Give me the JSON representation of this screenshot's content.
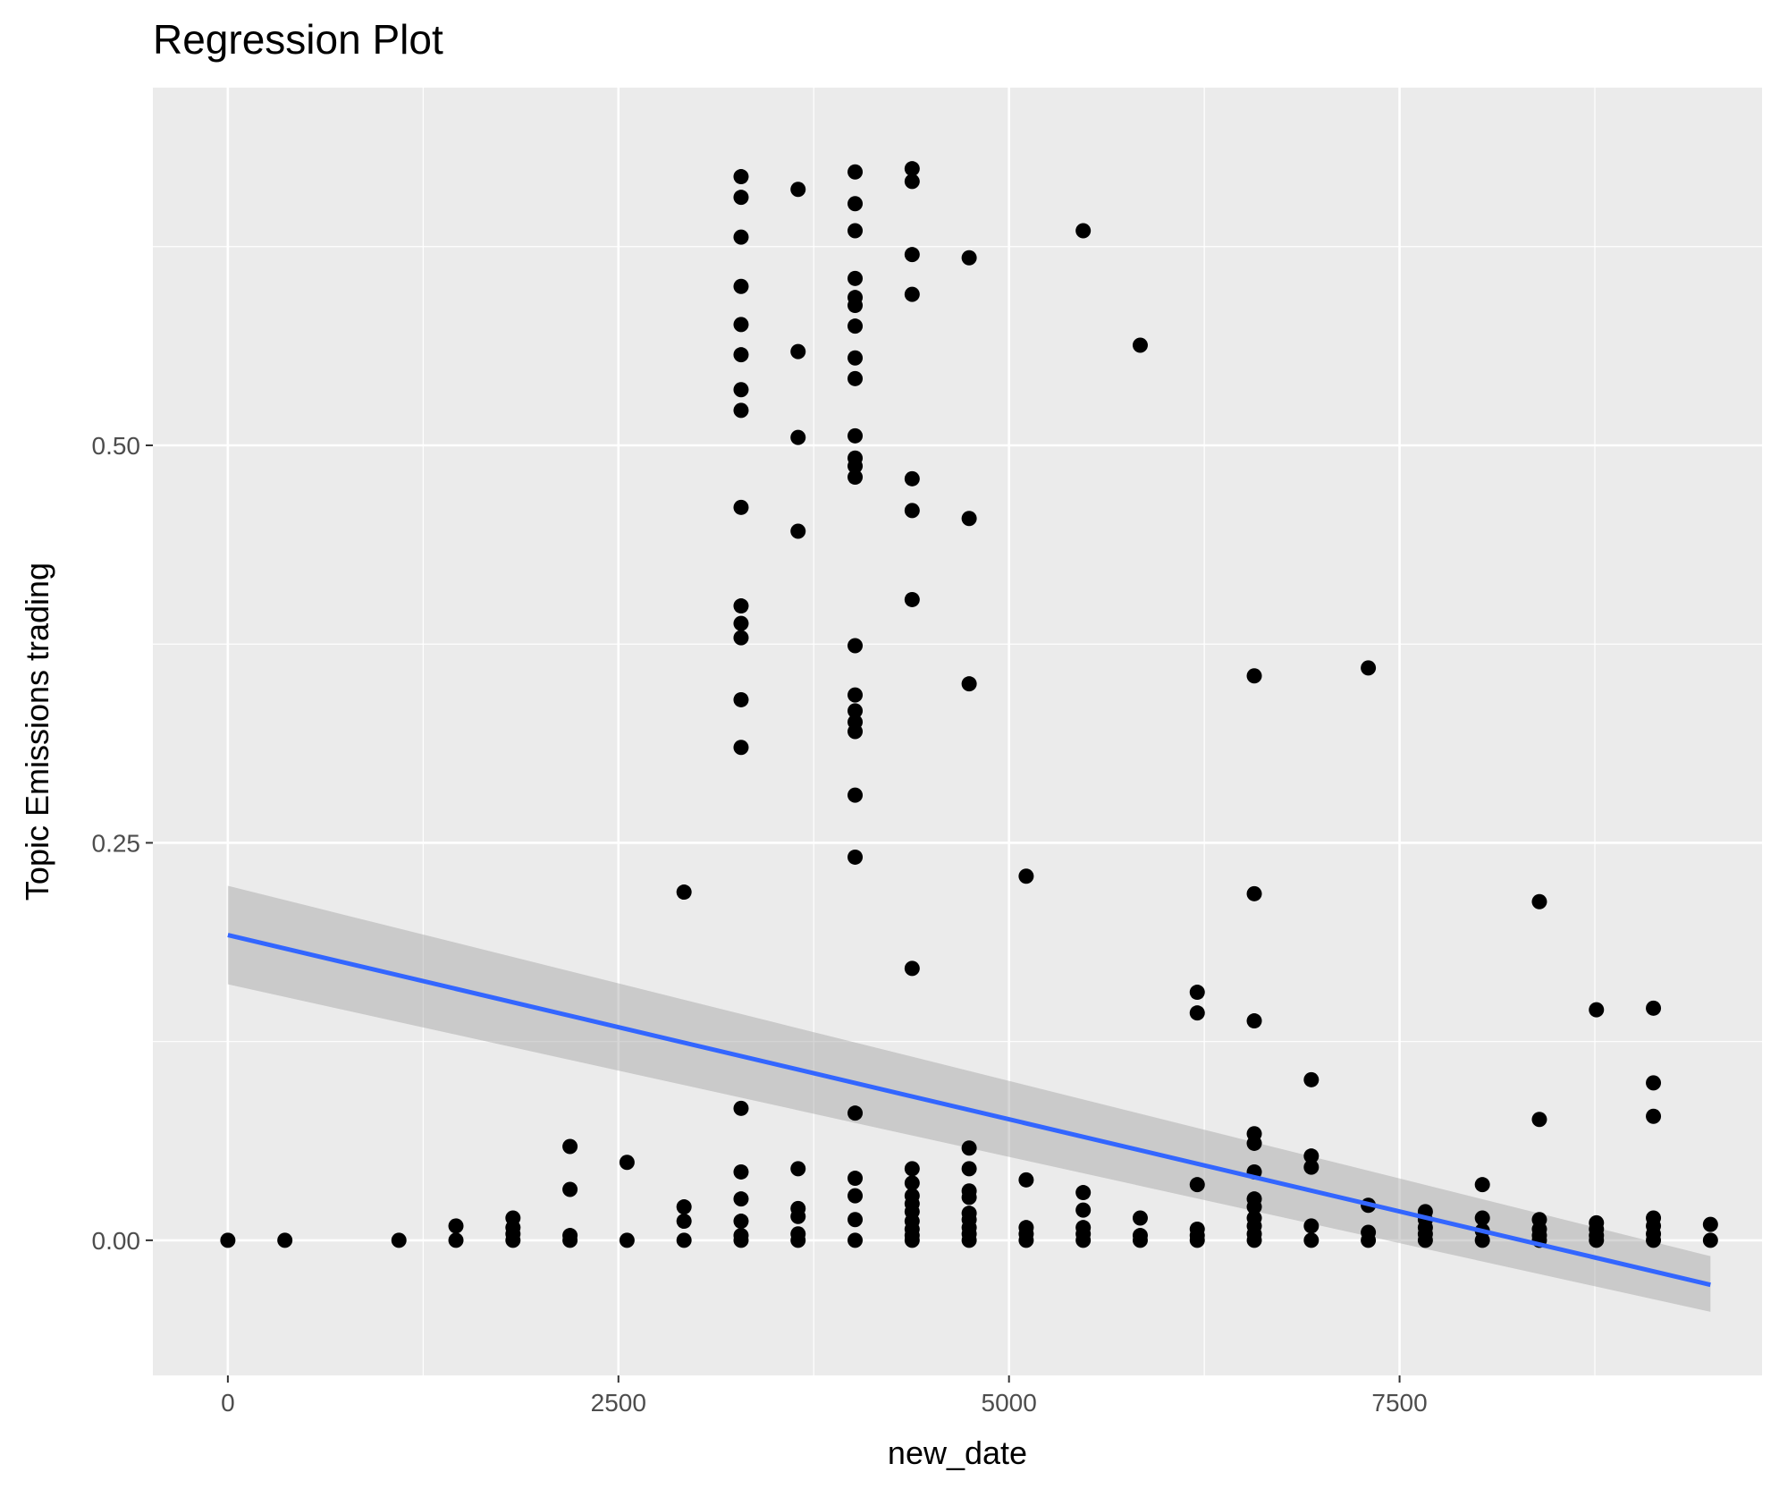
{
  "chart_data": {
    "type": "scatter",
    "title": "Regression Plot",
    "xlabel": "new_date",
    "ylabel": "Topic Emissions trading",
    "xlim": [
      -480,
      9820
    ],
    "ylim": [
      -0.085,
      0.725
    ],
    "x_ticks": [
      {
        "value": 0,
        "label": "0"
      },
      {
        "value": 2500,
        "label": "2500"
      },
      {
        "value": 5000,
        "label": "5000"
      },
      {
        "value": 7500,
        "label": "7500"
      }
    ],
    "y_ticks": [
      {
        "value": 0,
        "label": "0.00"
      },
      {
        "value": 0.25,
        "label": "0.25"
      },
      {
        "value": 0.5,
        "label": "0.50"
      }
    ],
    "x_minor_breaks": [
      1250,
      3750,
      6250,
      8750
    ],
    "y_minor_breaks": [
      0.125,
      0.375,
      0.625
    ],
    "grid": true,
    "legend": "none",
    "colors": {
      "panel": "#ebebeb",
      "grid": "#ffffff",
      "points": "#000000",
      "fit_line": "#3366ff",
      "confidence_band": "#999999"
    },
    "points": [
      [
        0,
        0
      ],
      [
        365,
        0
      ],
      [
        1095,
        0
      ],
      [
        1460,
        0
      ],
      [
        1460,
        0.009
      ],
      [
        1825,
        0
      ],
      [
        1825,
        0.004
      ],
      [
        1825,
        0.008
      ],
      [
        1825,
        0.014
      ],
      [
        2190,
        0
      ],
      [
        2190,
        0.003
      ],
      [
        2190,
        0.032
      ],
      [
        2190,
        0.059
      ],
      [
        2555,
        0
      ],
      [
        2555,
        0.049
      ],
      [
        2920,
        0
      ],
      [
        2920,
        0.012
      ],
      [
        2920,
        0.021
      ],
      [
        2920,
        0.219
      ],
      [
        3285,
        0
      ],
      [
        3285,
        0.003
      ],
      [
        3285,
        0.012
      ],
      [
        3285,
        0.026
      ],
      [
        3285,
        0.043
      ],
      [
        3285,
        0.083
      ],
      [
        3285,
        0.31
      ],
      [
        3285,
        0.34
      ],
      [
        3285,
        0.379
      ],
      [
        3285,
        0.388
      ],
      [
        3285,
        0.399
      ],
      [
        3285,
        0.461
      ],
      [
        3285,
        0.522
      ],
      [
        3285,
        0.535
      ],
      [
        3285,
        0.557
      ],
      [
        3285,
        0.576
      ],
      [
        3285,
        0.6
      ],
      [
        3285,
        0.631
      ],
      [
        3285,
        0.656
      ],
      [
        3285,
        0.669
      ],
      [
        3650,
        0
      ],
      [
        3650,
        0.004
      ],
      [
        3650,
        0.015
      ],
      [
        3650,
        0.02
      ],
      [
        3650,
        0.045
      ],
      [
        3650,
        0.446
      ],
      [
        3650,
        0.505
      ],
      [
        3650,
        0.559
      ],
      [
        3650,
        0.661
      ],
      [
        4015,
        0
      ],
      [
        4015,
        0.013
      ],
      [
        4015,
        0.028
      ],
      [
        4015,
        0.039
      ],
      [
        4015,
        0.08
      ],
      [
        4015,
        0.241
      ],
      [
        4015,
        0.28
      ],
      [
        4015,
        0.32
      ],
      [
        4015,
        0.326
      ],
      [
        4015,
        0.333
      ],
      [
        4015,
        0.343
      ],
      [
        4015,
        0.374
      ],
      [
        4015,
        0.48
      ],
      [
        4015,
        0.487
      ],
      [
        4015,
        0.492
      ],
      [
        4015,
        0.506
      ],
      [
        4015,
        0.542
      ],
      [
        4015,
        0.555
      ],
      [
        4015,
        0.575
      ],
      [
        4015,
        0.588
      ],
      [
        4015,
        0.593
      ],
      [
        4015,
        0.605
      ],
      [
        4015,
        0.635
      ],
      [
        4015,
        0.652
      ],
      [
        4015,
        0.672
      ],
      [
        4380,
        0
      ],
      [
        4380,
        0.003
      ],
      [
        4380,
        0.007
      ],
      [
        4380,
        0.012
      ],
      [
        4380,
        0.018
      ],
      [
        4380,
        0.023
      ],
      [
        4380,
        0.028
      ],
      [
        4380,
        0.036
      ],
      [
        4380,
        0.045
      ],
      [
        4380,
        0.171
      ],
      [
        4380,
        0.403
      ],
      [
        4380,
        0.459
      ],
      [
        4380,
        0.479
      ],
      [
        4380,
        0.595
      ],
      [
        4380,
        0.62
      ],
      [
        4380,
        0.666
      ],
      [
        4380,
        0.674
      ],
      [
        4745,
        0
      ],
      [
        4745,
        0.004
      ],
      [
        4745,
        0.008
      ],
      [
        4745,
        0.013
      ],
      [
        4745,
        0.017
      ],
      [
        4745,
        0.027
      ],
      [
        4745,
        0.031
      ],
      [
        4745,
        0.045
      ],
      [
        4745,
        0.058
      ],
      [
        4745,
        0.35
      ],
      [
        4745,
        0.454
      ],
      [
        4745,
        0.618
      ],
      [
        5110,
        0
      ],
      [
        5110,
        0.004
      ],
      [
        5110,
        0.008
      ],
      [
        5110,
        0.038
      ],
      [
        5110,
        0.229
      ],
      [
        5475,
        0
      ],
      [
        5475,
        0.004
      ],
      [
        5475,
        0.008
      ],
      [
        5475,
        0.019
      ],
      [
        5475,
        0.03
      ],
      [
        5475,
        0.635
      ],
      [
        5840,
        0
      ],
      [
        5840,
        0.003
      ],
      [
        5840,
        0.014
      ],
      [
        5840,
        0.563
      ],
      [
        6205,
        0
      ],
      [
        6205,
        0.003
      ],
      [
        6205,
        0.007
      ],
      [
        6205,
        0.035
      ],
      [
        6205,
        0.143
      ],
      [
        6205,
        0.156
      ],
      [
        6570,
        0
      ],
      [
        6570,
        0.004
      ],
      [
        6570,
        0.009
      ],
      [
        6570,
        0.014
      ],
      [
        6570,
        0.021
      ],
      [
        6570,
        0.026
      ],
      [
        6570,
        0.043
      ],
      [
        6570,
        0.061
      ],
      [
        6570,
        0.067
      ],
      [
        6570,
        0.138
      ],
      [
        6570,
        0.218
      ],
      [
        6570,
        0.355
      ],
      [
        6935,
        0
      ],
      [
        6935,
        0.009
      ],
      [
        6935,
        0.046
      ],
      [
        6935,
        0.053
      ],
      [
        6935,
        0.101
      ],
      [
        7300,
        0
      ],
      [
        7300,
        0.005
      ],
      [
        7300,
        0.022
      ],
      [
        7300,
        0.36
      ],
      [
        7665,
        0
      ],
      [
        7665,
        0.004
      ],
      [
        7665,
        0.008
      ],
      [
        7665,
        0.013
      ],
      [
        7665,
        0.018
      ],
      [
        8030,
        0
      ],
      [
        8030,
        0.006
      ],
      [
        8030,
        0.014
      ],
      [
        8030,
        0.035
      ],
      [
        8395,
        0
      ],
      [
        8395,
        0.003
      ],
      [
        8395,
        0.007
      ],
      [
        8395,
        0.013
      ],
      [
        8395,
        0.076
      ],
      [
        8395,
        0.213
      ],
      [
        8760,
        0
      ],
      [
        8760,
        0.003
      ],
      [
        8760,
        0.007
      ],
      [
        8760,
        0.011
      ],
      [
        8760,
        0.145
      ],
      [
        9125,
        0
      ],
      [
        9125,
        0.004
      ],
      [
        9125,
        0.009
      ],
      [
        9125,
        0.014
      ],
      [
        9125,
        0.078
      ],
      [
        9125,
        0.099
      ],
      [
        9125,
        0.146
      ],
      [
        9490,
        0
      ],
      [
        9490,
        0.01
      ]
    ],
    "regression": {
      "x": [
        0,
        9490
      ],
      "y": [
        0.192,
        -0.028
      ],
      "ci_lower": [
        0.161,
        -0.045
      ],
      "ci_upper": [
        0.223,
        -0.01
      ]
    }
  }
}
